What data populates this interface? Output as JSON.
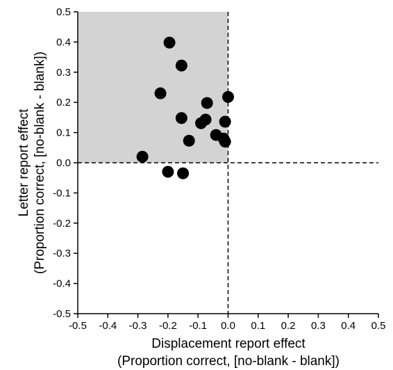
{
  "chart_data": {
    "type": "scatter",
    "xlabel_line1": "Displacement report effect",
    "xlabel_line2": "(Proportion correct, [no-blank - blank])",
    "ylabel_line1": "Letter report effect",
    "ylabel_line2": "(Proportion correct, [no-blank - blank])",
    "xlim": [
      -0.5,
      0.5
    ],
    "ylim": [
      -0.5,
      0.5
    ],
    "xticks": [
      "-0.5",
      "-0.4",
      "-0.3",
      "-0.2",
      "-0.1",
      "0.0",
      "0.1",
      "0.2",
      "0.3",
      "0.4",
      "0.5"
    ],
    "yticks": [
      "0.5",
      "0.4",
      "0.3",
      "0.2",
      "0.1",
      "0.0",
      "-0.1",
      "-0.2",
      "-0.3",
      "-0.4",
      "-0.5"
    ],
    "ytick_values": [
      0.5,
      0.4,
      0.3,
      0.2,
      0.1,
      0.0,
      -0.1,
      -0.2,
      -0.3,
      -0.4,
      -0.5
    ],
    "xtick_values": [
      -0.5,
      -0.4,
      -0.3,
      -0.2,
      -0.1,
      0.0,
      0.1,
      0.2,
      0.3,
      0.4,
      0.5
    ],
    "shaded_region": {
      "x": [
        -0.5,
        0.0
      ],
      "y": [
        0.0,
        0.5
      ],
      "color": "#d3d3d3"
    },
    "reference_lines": {
      "x": 0.0,
      "y": 0.0,
      "style": "dashed"
    },
    "marker_color": "#000000",
    "points": [
      {
        "x": -0.195,
        "y": 0.398
      },
      {
        "x": -0.155,
        "y": 0.322
      },
      {
        "x": -0.225,
        "y": 0.23
      },
      {
        "x": 0.0,
        "y": 0.218
      },
      {
        "x": -0.07,
        "y": 0.198
      },
      {
        "x": -0.155,
        "y": 0.148
      },
      {
        "x": -0.075,
        "y": 0.143
      },
      {
        "x": -0.09,
        "y": 0.131
      },
      {
        "x": -0.01,
        "y": 0.136
      },
      {
        "x": -0.04,
        "y": 0.092
      },
      {
        "x": -0.015,
        "y": 0.08
      },
      {
        "x": -0.13,
        "y": 0.073
      },
      {
        "x": -0.01,
        "y": 0.07
      },
      {
        "x": -0.285,
        "y": 0.02
      },
      {
        "x": -0.2,
        "y": -0.03
      },
      {
        "x": -0.15,
        "y": -0.035
      }
    ]
  }
}
